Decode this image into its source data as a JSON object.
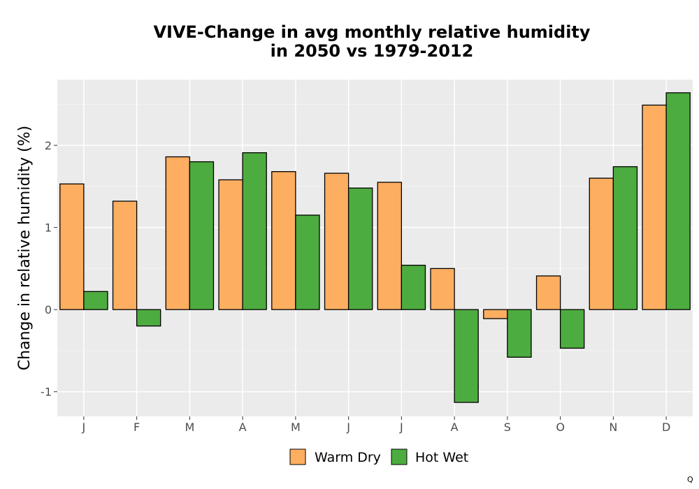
{
  "chart_data": {
    "type": "bar",
    "title_line1": "VIVE-Change in avg monthly relative humidity",
    "title_line2": "in 2050 vs 1979-2012",
    "xlabel": "",
    "ylabel": "Change in relative humidity (%)",
    "categories": [
      "J",
      "F",
      "M",
      "A",
      "M",
      "J",
      "J",
      "A",
      "S",
      "O",
      "N",
      "D"
    ],
    "ylim": [
      -1.3,
      2.8
    ],
    "yticks": [
      -1,
      0,
      1,
      2
    ],
    "grid": true,
    "legend_position": "bottom",
    "series": [
      {
        "name": "Warm Dry",
        "color": "#FDAE61",
        "values": [
          1.53,
          1.32,
          1.86,
          1.58,
          1.68,
          1.66,
          1.55,
          0.5,
          -0.11,
          0.41,
          1.6,
          2.49
        ]
      },
      {
        "name": "Hot Wet",
        "color": "#4DAC3F",
        "values": [
          0.22,
          -0.2,
          1.8,
          1.91,
          1.15,
          1.48,
          0.54,
          -1.13,
          -0.58,
          -0.47,
          1.74,
          2.64
        ]
      }
    ]
  },
  "corner_mark": "Q"
}
